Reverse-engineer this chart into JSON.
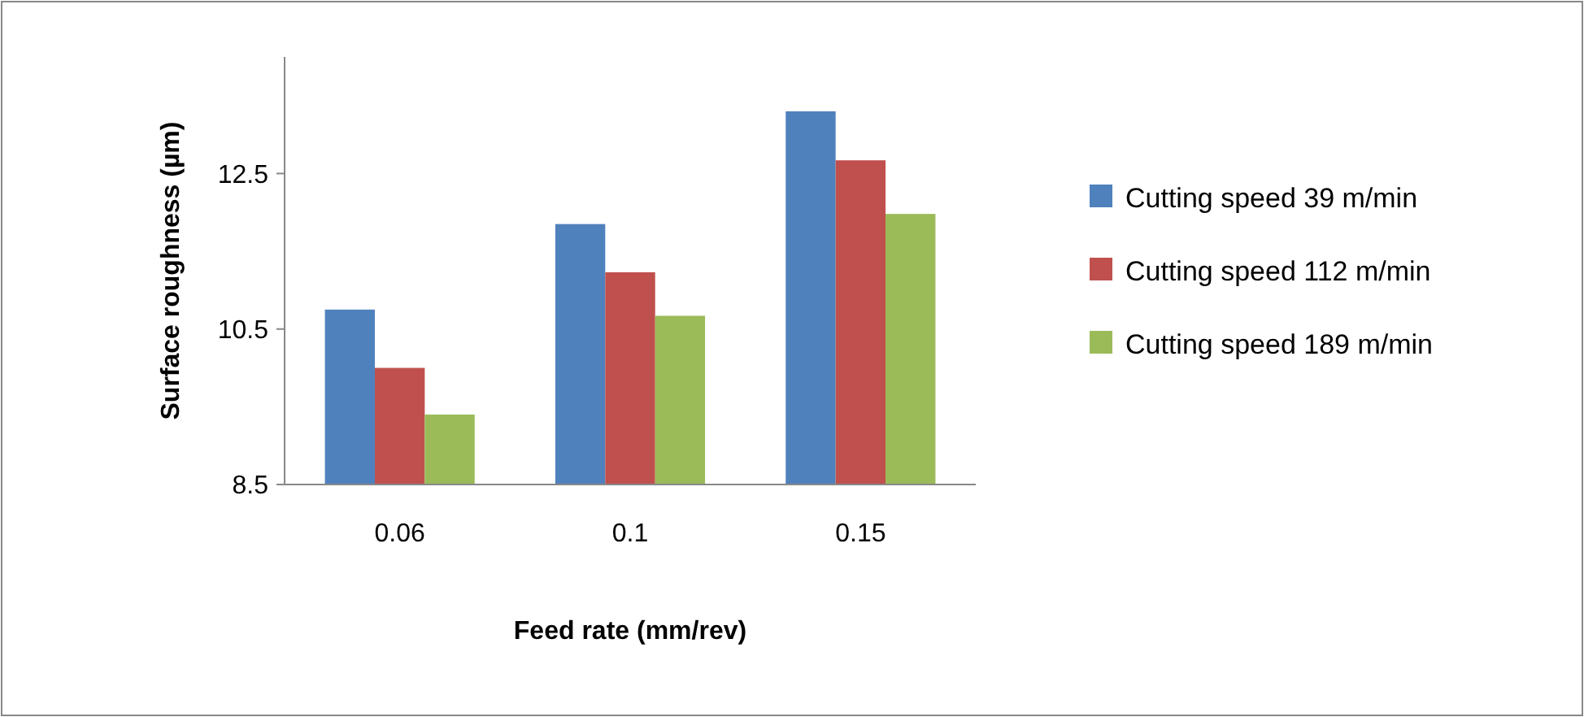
{
  "chart_data": {
    "type": "bar",
    "xlabel": "Feed rate (mm/rev)",
    "ylabel": "Surface roughness (µm)",
    "categories": [
      "0.06",
      "0.1",
      "0.15"
    ],
    "series": [
      {
        "name": "Cutting speed  39 m/min",
        "color": "#4f81bd",
        "values": [
          10.75,
          11.85,
          13.3
        ]
      },
      {
        "name": "Cutting speed  112 m/min",
        "color": "#c0504d",
        "values": [
          10.0,
          11.23,
          12.67
        ]
      },
      {
        "name": "Cutting speed  189 m/min",
        "color": "#9bbb59",
        "values": [
          9.4,
          10.67,
          11.98
        ]
      }
    ],
    "ylim": [
      8.5,
      14
    ],
    "yticks": [
      8.5,
      10.5,
      12.5
    ],
    "grid": false,
    "legend": "right"
  }
}
